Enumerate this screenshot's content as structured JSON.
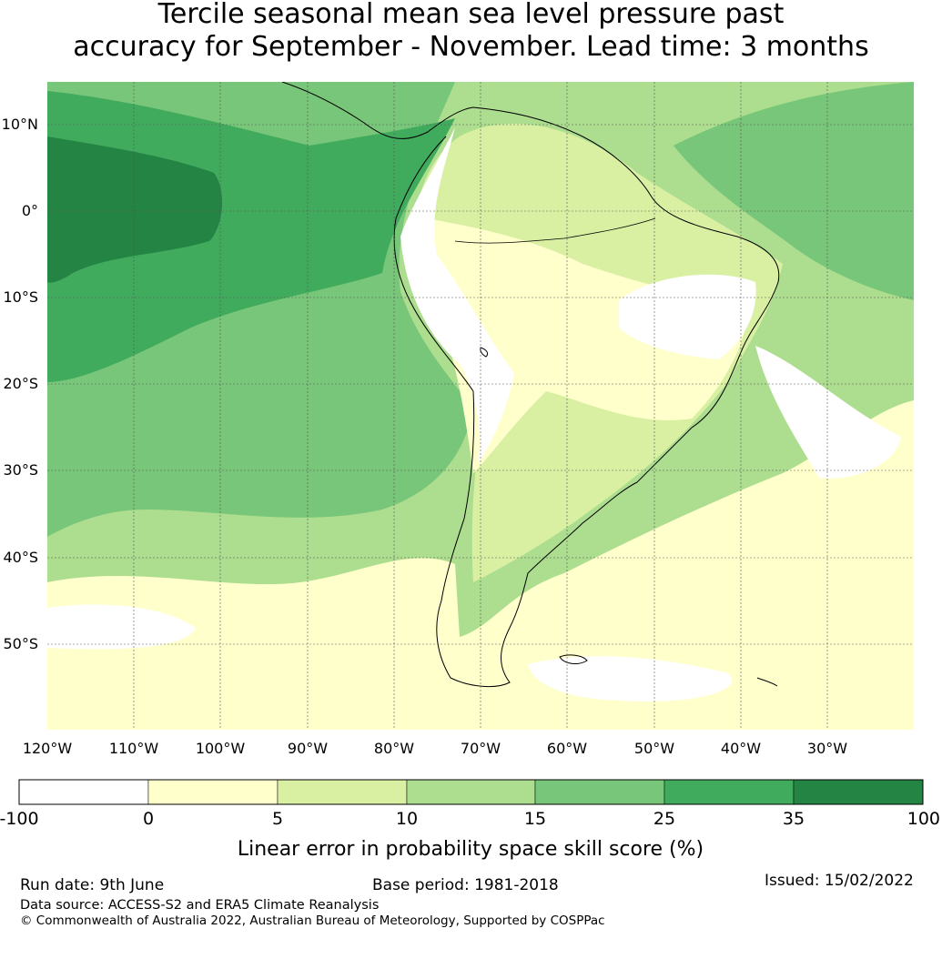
{
  "title": {
    "line1": "Tercile seasonal mean sea level pressure past",
    "line2": "accuracy for September - November. Lead time: 3 months"
  },
  "map": {
    "lat_labels": [
      "10°N",
      "0°",
      "10°S",
      "20°S",
      "30°S",
      "40°S",
      "50°S"
    ],
    "lon_labels": [
      "120°W",
      "110°W",
      "100°W",
      "90°W",
      "80°W",
      "70°W",
      "60°W",
      "50°W",
      "40°W",
      "30°W"
    ],
    "colors": {
      "land_outline": "#000000",
      "gridlines": "#555555"
    }
  },
  "colorbar": {
    "label": "Linear error in probability space skill score (%)",
    "tick_labels": [
      "-100",
      "0",
      "5",
      "10",
      "15",
      "25",
      "35",
      "100"
    ],
    "colors": [
      "#ffffff",
      "#ffffcc",
      "#d9f0a3",
      "#addd8e",
      "#78c679",
      "#41ab5d",
      "#238443"
    ]
  },
  "footer": {
    "run_date": "Run date: 9th June",
    "base_period": "Base period: 1981-2018",
    "issued": "Issued: 15/02/2022",
    "data_source": "Data source: ACCESS-S2 and ERA5 Climate Reanalysis",
    "copyright": "© Commonwealth of Australia 2022, Australian Bureau of Meteorology, Supported by COSPPac"
  }
}
